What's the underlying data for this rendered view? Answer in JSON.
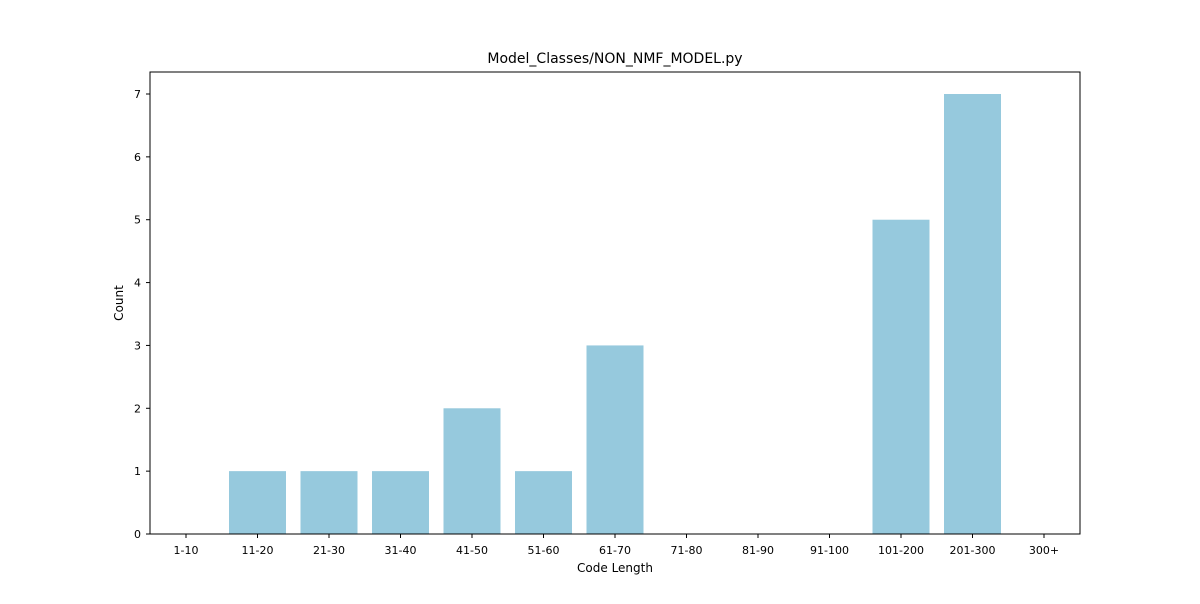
{
  "chart_data": {
    "type": "bar",
    "title": "Model_Classes/NON_NMF_MODEL.py",
    "xlabel": "Code Length",
    "ylabel": "Count",
    "categories": [
      "1-10",
      "11-20",
      "21-30",
      "31-40",
      "41-50",
      "51-60",
      "61-70",
      "71-80",
      "81-90",
      "91-100",
      "101-200",
      "201-300",
      "300+"
    ],
    "values": [
      0,
      1,
      1,
      1,
      2,
      1,
      3,
      0,
      0,
      0,
      5,
      7,
      0
    ],
    "ylim": [
      0,
      7.35
    ],
    "yticks": [
      0,
      1,
      2,
      3,
      4,
      5,
      6,
      7
    ],
    "bar_color": "#96c9dd",
    "grid": false,
    "legend": "none"
  }
}
